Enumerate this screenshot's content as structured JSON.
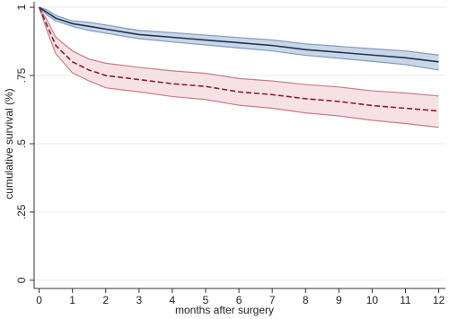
{
  "chart_data": {
    "type": "line",
    "x_label": "months after surgery",
    "y_label": "cumulative survival (%)",
    "x": [
      0,
      0.25,
      0.5,
      1,
      1.5,
      2,
      3,
      4,
      5,
      6,
      7,
      8,
      9,
      10,
      11,
      12
    ],
    "series": [
      {
        "color": "#1d3557",
        "band_color": "#b9c9dd",
        "band_edge": "#7f9cc0",
        "dash": false,
        "values": [
          1,
          0.98,
          0.96,
          0.94,
          0.93,
          0.92,
          0.9,
          0.89,
          0.88,
          0.87,
          0.86,
          0.845,
          0.835,
          0.825,
          0.815,
          0.8
        ],
        "lower": [
          1,
          0.97,
          0.95,
          0.93,
          0.915,
          0.905,
          0.885,
          0.873,
          0.862,
          0.851,
          0.84,
          0.824,
          0.813,
          0.802,
          0.79,
          0.77
        ],
        "upper": [
          1,
          0.99,
          0.97,
          0.95,
          0.945,
          0.935,
          0.915,
          0.907,
          0.898,
          0.889,
          0.88,
          0.866,
          0.857,
          0.848,
          0.84,
          0.825
        ]
      },
      {
        "color": "#8e1b2e",
        "band_color": "#f3d8db",
        "band_edge": "#c77d88",
        "dash": true,
        "values": [
          1,
          0.93,
          0.86,
          0.8,
          0.77,
          0.75,
          0.735,
          0.72,
          0.71,
          0.69,
          0.68,
          0.665,
          0.655,
          0.64,
          0.63,
          0.62
        ],
        "lower": [
          1,
          0.91,
          0.83,
          0.76,
          0.73,
          0.705,
          0.69,
          0.673,
          0.662,
          0.641,
          0.63,
          0.613,
          0.602,
          0.586,
          0.574,
          0.56
        ],
        "upper": [
          1,
          0.95,
          0.89,
          0.84,
          0.81,
          0.795,
          0.78,
          0.767,
          0.758,
          0.739,
          0.73,
          0.717,
          0.708,
          0.694,
          0.686,
          0.675
        ]
      }
    ],
    "xlim": [
      -0.15,
      12.2
    ],
    "ylim": [
      -0.03,
      1.02
    ],
    "xticks": [
      0,
      1,
      2,
      3,
      4,
      5,
      6,
      7,
      8,
      9,
      10,
      11,
      12
    ],
    "yticks": [
      0,
      {
        "value": 0.25,
        "label": ".25"
      },
      {
        "value": 0.5,
        "label": ".5"
      },
      {
        "value": 0.75,
        "label": ".75"
      },
      1
    ],
    "grid": true
  }
}
